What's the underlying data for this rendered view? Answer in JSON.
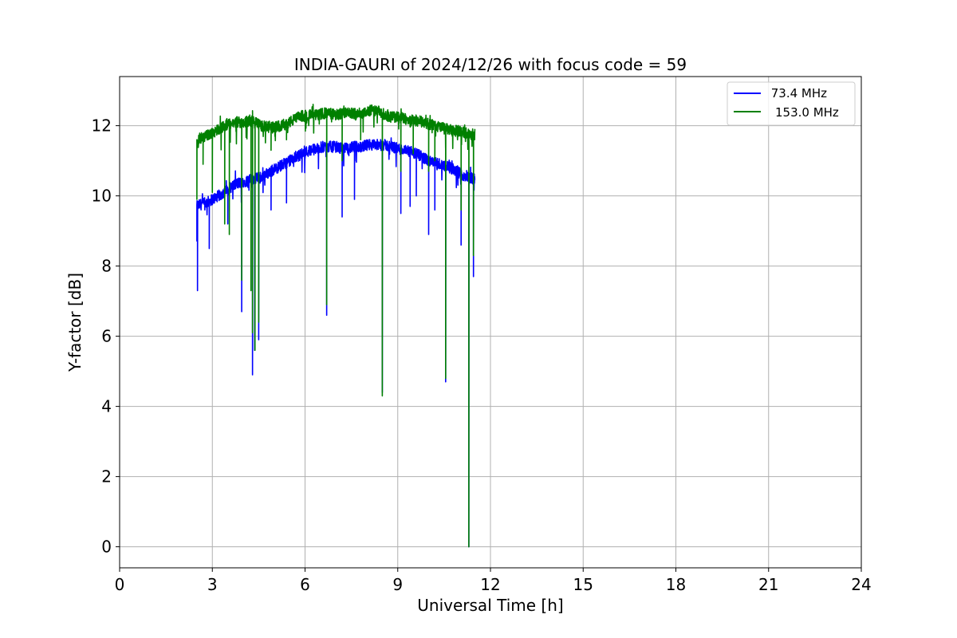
{
  "chart_data": {
    "type": "line",
    "title": "INDIA-GAURI of 2024/12/26 with focus code = 59",
    "xlabel": "Universal Time [h]",
    "ylabel": "Y-factor [dB]",
    "xlim": [
      0,
      24
    ],
    "ylim": [
      -0.6,
      13.4
    ],
    "xticks": [
      0,
      3,
      6,
      9,
      12,
      15,
      18,
      21,
      24
    ],
    "yticks": [
      0,
      2,
      4,
      6,
      8,
      10,
      12
    ],
    "grid": true,
    "legend_position": "top-right",
    "series": [
      {
        "name": " 73.4 MHz",
        "color": "#0000ff",
        "x": [
          2.5,
          2.6,
          2.8,
          3.0,
          3.2,
          3.4,
          3.6,
          3.8,
          4.0,
          4.2,
          4.4,
          4.6,
          4.8,
          5.0,
          5.2,
          5.4,
          5.6,
          5.8,
          6.0,
          6.2,
          6.4,
          6.6,
          6.8,
          7.0,
          7.2,
          7.4,
          7.6,
          7.8,
          8.0,
          8.2,
          8.4,
          8.6,
          8.8,
          9.0,
          9.2,
          9.4,
          9.6,
          9.8,
          10.0,
          10.2,
          10.4,
          10.6,
          10.8,
          11.0,
          11.2,
          11.4,
          11.5
        ],
        "values": [
          9.7,
          9.75,
          9.8,
          9.9,
          10.0,
          10.1,
          10.25,
          10.35,
          10.4,
          10.45,
          10.5,
          10.55,
          10.65,
          10.75,
          10.85,
          10.95,
          11.05,
          11.15,
          11.25,
          11.3,
          11.35,
          11.4,
          11.4,
          11.4,
          11.35,
          11.35,
          11.4,
          11.4,
          11.45,
          11.45,
          11.45,
          11.45,
          11.4,
          11.35,
          11.3,
          11.25,
          11.2,
          11.1,
          11.0,
          10.95,
          10.9,
          10.85,
          10.75,
          10.65,
          10.55,
          10.5,
          10.45
        ],
        "dips": [
          [
            2.52,
            7.3
          ],
          [
            2.9,
            8.5
          ],
          [
            3.5,
            9.2
          ],
          [
            3.95,
            6.7
          ],
          [
            4.3,
            4.9
          ],
          [
            4.37,
            5.6
          ],
          [
            4.5,
            5.9
          ],
          [
            4.9,
            9.6
          ],
          [
            5.4,
            9.8
          ],
          [
            6.7,
            6.6
          ],
          [
            7.2,
            9.4
          ],
          [
            7.6,
            9.9
          ],
          [
            8.5,
            4.4
          ],
          [
            9.1,
            9.5
          ],
          [
            9.4,
            9.7
          ],
          [
            9.6,
            10.0
          ],
          [
            10.0,
            8.9
          ],
          [
            10.2,
            9.6
          ],
          [
            10.55,
            4.7
          ],
          [
            11.05,
            8.6
          ],
          [
            11.3,
            0.0
          ],
          [
            11.45,
            7.7
          ]
        ]
      },
      {
        "name": "153.0 MHz",
        "color": "#008000",
        "x": [
          2.5,
          2.6,
          2.8,
          3.0,
          3.2,
          3.4,
          3.6,
          3.8,
          4.0,
          4.2,
          4.4,
          4.6,
          4.8,
          5.0,
          5.2,
          5.4,
          5.6,
          5.8,
          6.0,
          6.2,
          6.4,
          6.6,
          6.8,
          7.0,
          7.2,
          7.4,
          7.6,
          7.8,
          8.0,
          8.2,
          8.4,
          8.6,
          8.8,
          9.0,
          9.2,
          9.4,
          9.6,
          9.8,
          10.0,
          10.2,
          10.4,
          10.6,
          10.8,
          11.0,
          11.2,
          11.4,
          11.5
        ],
        "values": [
          11.6,
          11.65,
          11.7,
          11.8,
          11.9,
          12.0,
          12.05,
          12.1,
          12.1,
          12.15,
          12.1,
          12.0,
          11.95,
          11.95,
          12.0,
          12.05,
          12.15,
          12.25,
          12.3,
          12.3,
          12.3,
          12.35,
          12.35,
          12.3,
          12.35,
          12.4,
          12.35,
          12.35,
          12.4,
          12.45,
          12.4,
          12.3,
          12.25,
          12.25,
          12.2,
          12.15,
          12.15,
          12.1,
          12.05,
          12.0,
          11.95,
          11.9,
          11.85,
          11.85,
          11.8,
          11.75,
          11.75
        ],
        "dips": [
          [
            2.5,
            9.9
          ],
          [
            2.7,
            10.9
          ],
          [
            3.0,
            10.1
          ],
          [
            3.4,
            9.2
          ],
          [
            3.55,
            8.9
          ],
          [
            3.95,
            7.6
          ],
          [
            4.25,
            7.3
          ],
          [
            4.3,
            6.1
          ],
          [
            4.38,
            5.6
          ],
          [
            4.5,
            6.4
          ],
          [
            4.9,
            11.3
          ],
          [
            5.4,
            11.6
          ],
          [
            6.7,
            6.9
          ],
          [
            7.2,
            11.0
          ],
          [
            7.8,
            11.6
          ],
          [
            8.5,
            4.3
          ],
          [
            9.1,
            10.7
          ],
          [
            9.5,
            11.2
          ],
          [
            10.0,
            10.7
          ],
          [
            10.2,
            11.0
          ],
          [
            10.55,
            4.8
          ],
          [
            11.05,
            9.6
          ],
          [
            11.3,
            0.0
          ],
          [
            11.45,
            8.3
          ]
        ]
      }
    ]
  }
}
